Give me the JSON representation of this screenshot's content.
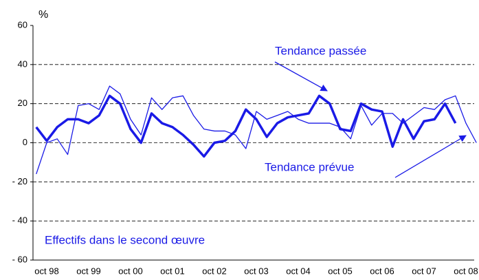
{
  "chart_data": {
    "type": "line",
    "y_label": "%",
    "annotations": [
      "Tendance passée",
      "Tendance prévue",
      "Effectifs dans le second œuvre"
    ],
    "categories": [
      null,
      "oct 98",
      null,
      null,
      null,
      "oct 99",
      null,
      null,
      null,
      "oct 00",
      null,
      null,
      null,
      "oct 01",
      null,
      null,
      null,
      "oct 02",
      null,
      null,
      null,
      "oct 03",
      null,
      null,
      null,
      "oct 04",
      null,
      null,
      null,
      "oct 05",
      null,
      null,
      null,
      "oct 06",
      null,
      null,
      null,
      "oct 07",
      null,
      null,
      null,
      "oct 08",
      null
    ],
    "series": [
      {
        "name": "Tendance passée",
        "color": "#1a1ae6",
        "values": [
          8,
          1,
          8,
          12,
          12,
          10,
          14,
          24,
          20,
          7,
          0,
          15,
          10,
          8,
          4,
          -1,
          -7,
          0,
          1,
          6,
          17,
          12,
          3,
          10,
          13,
          14,
          15,
          24,
          20,
          7,
          6,
          20,
          17,
          16,
          -2,
          12,
          2,
          11,
          12,
          20,
          10,
          null,
          null
        ]
      },
      {
        "name": "Tendance prévue",
        "color": "#1a1ae6",
        "values": [
          -16,
          0,
          2,
          -6,
          19,
          20,
          17,
          29,
          25,
          12,
          4,
          23,
          17,
          23,
          24,
          14,
          7,
          6,
          6,
          4,
          -3,
          16,
          12,
          14,
          16,
          12,
          10,
          10,
          10,
          8,
          2,
          19,
          9,
          15,
          15,
          10,
          14,
          18,
          17,
          22,
          24,
          10,
          0
        ]
      }
    ],
    "ylim": [
      -60,
      60
    ],
    "yticks": [
      {
        "value": -60,
        "label": "- 60"
      },
      {
        "value": -40,
        "label": "- 40"
      },
      {
        "value": -20,
        "label": "- 20"
      },
      0,
      20,
      40,
      60
    ],
    "grid": true
  }
}
